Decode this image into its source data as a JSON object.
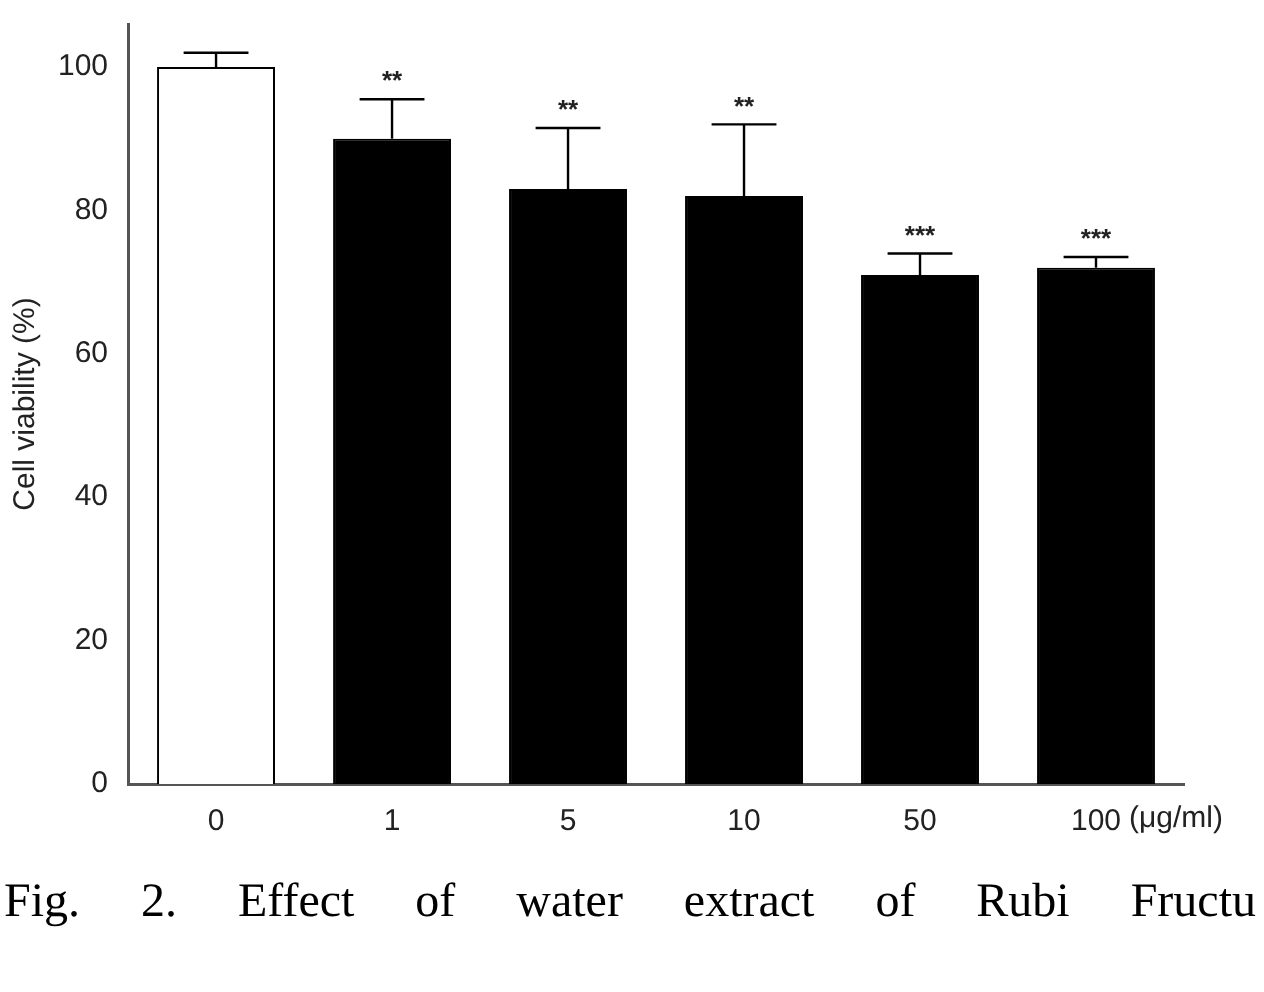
{
  "chart_data": {
    "type": "bar",
    "ylabel": "Cell viability (%)",
    "xlabel": "(μg/ml)",
    "categories": [
      "0",
      "1",
      "5",
      "10",
      "50",
      "100"
    ],
    "values": [
      100,
      90,
      83,
      82,
      71,
      72
    ],
    "colors": [
      "#ffffff",
      "#000000",
      "#000000",
      "#000000",
      "#000000",
      "#000000"
    ],
    "errors": [
      2,
      5.5,
      8.5,
      10,
      3,
      1.5
    ],
    "ylim": [
      0,
      106
    ],
    "yticks": [
      0,
      20,
      40,
      60,
      80,
      100
    ],
    "grid": false,
    "legend": false,
    "annotations": [
      {
        "text": "**",
        "x": "1",
        "y": 95.5
      },
      {
        "text": "**",
        "x": "5",
        "y": 91.5
      },
      {
        "text": "**",
        "x": "10",
        "y": 92
      },
      {
        "text": "***",
        "x": "50",
        "y": 74
      },
      {
        "text": "***",
        "x": "100",
        "y": 73.5
      },
      "Fig. 2. Effect of water extract of Rubi Fructu"
    ]
  }
}
